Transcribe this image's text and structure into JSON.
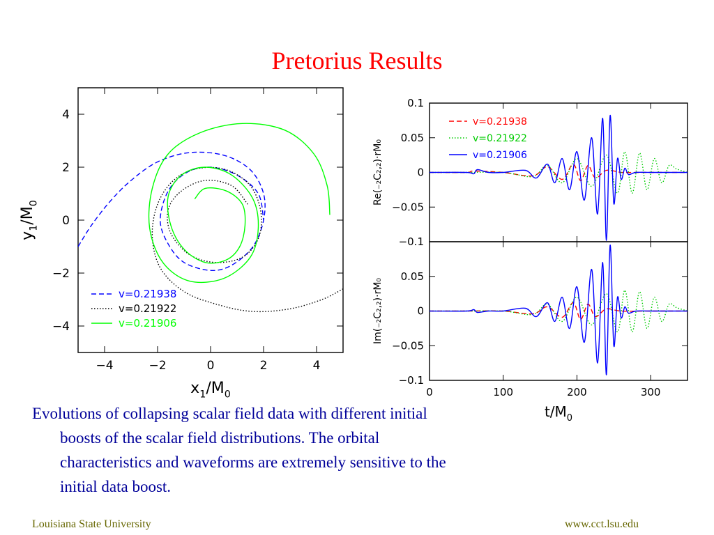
{
  "slide": {
    "title": "Pretorius Results",
    "caption": "Evolutions of collapsing scalar field data with different initial boosts of the scalar field distributions. The orbital characteristics and waveforms are extremely sensitive to the initial data boost.",
    "footer_left": "Louisiana State University",
    "footer_right": "www.cct.lsu.edu",
    "colors": {
      "title": "#ff0000",
      "caption": "#000099",
      "footer": "#666600"
    }
  },
  "chart_data": [
    {
      "type": "line",
      "xlabel": "x",
      "xlabel_sub": "1",
      "xlabel_tail": "/M",
      "xlabel_tail_sub": "0",
      "ylabel": "y",
      "ylabel_sub": "1",
      "ylabel_tail": "/M",
      "ylabel_tail_sub": "0",
      "xlim": [
        -5,
        5
      ],
      "ylim": [
        -5,
        5
      ],
      "xticks": [
        -4,
        -2,
        0,
        2,
        4
      ],
      "yticks": [
        -4,
        -2,
        0,
        2,
        4
      ],
      "xtick_labels": [
        "−4",
        "−2",
        "0",
        "2",
        "4"
      ],
      "ytick_labels": [
        "−4",
        "−2",
        "0",
        "2",
        "4"
      ],
      "legend_position": "bottom-left",
      "series": [
        {
          "name": "v=0.21938",
          "color": "#0000ff",
          "style": "dashed",
          "x": [
            -5.0,
            -4.5,
            -3.8,
            -3.0,
            -2.0,
            -0.8,
            0.5,
            1.5,
            2.0,
            2.0,
            1.6,
            0.8,
            0.0,
            -1.0,
            -1.6,
            -1.9,
            -1.6,
            -0.9,
            0.0,
            1.0,
            1.8,
            2.0
          ],
          "y": [
            -1.0,
            -0.2,
            0.7,
            1.5,
            2.2,
            2.55,
            2.45,
            1.9,
            1.0,
            0.0,
            -1.0,
            -1.7,
            -1.9,
            -1.6,
            -0.9,
            0.0,
            1.1,
            1.8,
            2.0,
            1.7,
            1.0,
            0.0
          ]
        },
        {
          "name": "v=0.21922",
          "color": "#000000",
          "style": "dotted",
          "x": [
            5.0,
            4.2,
            3.0,
            1.6,
            0.3,
            -1.0,
            -1.9,
            -2.2,
            -2.0,
            -1.4,
            -0.5,
            0.6,
            1.5,
            1.9,
            1.8,
            1.2,
            0.2,
            -0.8,
            -1.5,
            -1.6,
            -1.1,
            -0.2,
            0.8,
            1.4
          ],
          "y": [
            -2.6,
            -3.0,
            -3.35,
            -3.45,
            -3.2,
            -2.7,
            -1.8,
            -0.6,
            0.6,
            1.5,
            1.95,
            1.9,
            1.3,
            0.3,
            -0.7,
            -1.4,
            -1.6,
            -1.3,
            -0.5,
            0.4,
            1.1,
            1.5,
            1.3,
            0.6
          ]
        },
        {
          "name": "v=0.21906",
          "color": "#00ff00",
          "style": "solid",
          "x": [
            4.5,
            4.4,
            3.9,
            2.8,
            1.2,
            -0.4,
            -1.6,
            -2.2,
            -2.3,
            -1.8,
            -0.8,
            0.5,
            1.5,
            1.8,
            1.6,
            0.8,
            -0.2,
            -1.1,
            -1.6,
            -1.5,
            -1.0,
            -0.2,
            0.6,
            1.1,
            1.3,
            1.2,
            0.6,
            -0.2,
            -0.6
          ],
          "y": [
            0.2,
            1.3,
            2.5,
            3.4,
            3.65,
            3.3,
            2.5,
            1.2,
            -0.3,
            -1.6,
            -2.3,
            -2.2,
            -1.4,
            -0.3,
            0.8,
            1.7,
            2.0,
            1.7,
            0.9,
            -0.2,
            -1.1,
            -1.6,
            -1.5,
            -1.0,
            -0.2,
            0.6,
            1.1,
            1.2,
            0.8
          ]
        }
      ]
    },
    {
      "type": "line",
      "ylabel": "Re(₋₂C₂,₂)·rM₀",
      "xlim": [
        0,
        350
      ],
      "ylim": [
        -0.1,
        0.1
      ],
      "xticks": [
        0,
        100,
        200,
        300
      ],
      "yticks": [
        -0.1,
        -0.05,
        0,
        0.05,
        0.1
      ],
      "ytick_labels": [
        "−0.1",
        "−0.05",
        "0",
        "0.05",
        "0.1"
      ],
      "legend_position": "top-left",
      "series": [
        {
          "name": "v=0.21938",
          "color": "#ff0000",
          "style": "dashed",
          "x": [
            0,
            50,
            60,
            100,
            140,
            160,
            180,
            195,
            205,
            215,
            225,
            240,
            260,
            280,
            300,
            350
          ],
          "y": [
            0,
            0,
            0.002,
            0,
            -0.005,
            0.008,
            -0.01,
            0.012,
            -0.012,
            0.01,
            -0.008,
            0.003,
            0,
            0,
            0,
            0
          ]
        },
        {
          "name": "v=0.21922",
          "color": "#00cc00",
          "style": "dotted",
          "x": [
            0,
            50,
            100,
            140,
            160,
            180,
            200,
            220,
            240,
            255,
            265,
            275,
            285,
            295,
            305,
            315,
            325,
            335,
            350
          ],
          "y": [
            0,
            0,
            0,
            -0.006,
            0.01,
            -0.015,
            0.02,
            -0.02,
            0.025,
            -0.03,
            0.03,
            -0.03,
            0.028,
            -0.025,
            0.02,
            -0.015,
            0.01,
            0.005,
            0
          ]
        },
        {
          "name": "v=0.21906",
          "color": "#0000ff",
          "style": "solid",
          "x": [
            0,
            50,
            60,
            65,
            80,
            100,
            130,
            145,
            160,
            170,
            180,
            190,
            200,
            210,
            220,
            228,
            235,
            240,
            245,
            250,
            255,
            260,
            265,
            270,
            280,
            300,
            350
          ],
          "y": [
            0,
            0,
            -0.002,
            0.004,
            0,
            0,
            0.003,
            -0.008,
            0.012,
            -0.015,
            0.02,
            -0.025,
            0.03,
            -0.04,
            0.05,
            -0.06,
            0.078,
            -0.098,
            0.082,
            -0.045,
            0.02,
            -0.01,
            0.006,
            -0.003,
            0,
            0,
            0
          ]
        }
      ]
    },
    {
      "type": "line",
      "ylabel": "Im(₋₂C₂,₂)·rM₀",
      "xlabel": "t",
      "xlabel_tail": "/M",
      "xlabel_tail_sub": "0",
      "xlim": [
        0,
        350
      ],
      "ylim": [
        -0.1,
        0.1
      ],
      "xticks": [
        0,
        100,
        200,
        300
      ],
      "xtick_labels": [
        "0",
        "100",
        "200",
        "300"
      ],
      "yticks": [
        -0.1,
        -0.05,
        0,
        0.05,
        0.1
      ],
      "ytick_labels": [
        "−0.1",
        "−0.05",
        "0",
        "0.05",
        ""
      ],
      "series": [
        {
          "name": "v=0.21938",
          "color": "#ff0000",
          "style": "dashed",
          "x": [
            0,
            50,
            100,
            140,
            160,
            180,
            195,
            205,
            215,
            225,
            240,
            260,
            300,
            350
          ],
          "y": [
            0,
            0,
            0,
            -0.004,
            0.006,
            -0.009,
            0.012,
            -0.012,
            0.01,
            -0.008,
            0.003,
            0,
            0,
            0
          ]
        },
        {
          "name": "v=0.21922",
          "color": "#00cc00",
          "style": "dotted",
          "x": [
            0,
            50,
            100,
            140,
            160,
            180,
            200,
            220,
            240,
            255,
            265,
            275,
            285,
            295,
            305,
            315,
            325,
            335,
            350
          ],
          "y": [
            0,
            0,
            0,
            -0.005,
            0.01,
            -0.015,
            0.02,
            -0.02,
            0.025,
            -0.03,
            0.03,
            -0.03,
            0.028,
            -0.025,
            0.02,
            -0.015,
            0.01,
            0.005,
            0
          ]
        },
        {
          "name": "v=0.21906",
          "color": "#0000ff",
          "style": "solid",
          "x": [
            0,
            50,
            60,
            65,
            80,
            100,
            130,
            145,
            160,
            170,
            180,
            190,
            200,
            210,
            220,
            228,
            235,
            240,
            245,
            250,
            255,
            260,
            265,
            270,
            280,
            300,
            350
          ],
          "y": [
            0,
            0,
            0.002,
            -0.002,
            0,
            0,
            0.004,
            -0.008,
            0.012,
            -0.015,
            0.02,
            -0.025,
            0.035,
            -0.045,
            0.06,
            -0.075,
            0.07,
            -0.092,
            0.095,
            -0.05,
            0.02,
            -0.01,
            0.006,
            -0.003,
            0,
            0,
            0
          ]
        }
      ]
    }
  ]
}
